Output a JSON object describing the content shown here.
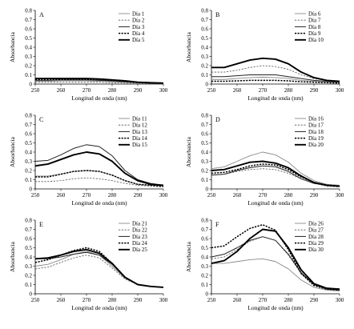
{
  "chart_data": [
    {
      "type": "line",
      "panel": "A",
      "xlabel": "Longitud de onda (nm)",
      "ylabel": "Absorbancia",
      "xlim": [
        250,
        300
      ],
      "ylim": [
        0,
        0.8
      ],
      "xticks": [
        "250",
        "260",
        "270",
        "280",
        "290",
        "300"
      ],
      "yticks": [
        "0",
        "0.1",
        "0.2",
        "0.3",
        "0.4",
        "0.5",
        "0.6",
        "0.7",
        "0.8"
      ],
      "x": [
        250,
        255,
        260,
        265,
        270,
        275,
        280,
        285,
        290,
        295,
        300
      ],
      "series": [
        {
          "name": "Día 1",
          "style": "solid-thin",
          "values": [
            0.03,
            0.03,
            0.035,
            0.035,
            0.035,
            0.03,
            0.025,
            0.02,
            0.015,
            0.01,
            0.01
          ]
        },
        {
          "name": "Día 2",
          "style": "dashed-thin",
          "values": [
            0.02,
            0.02,
            0.02,
            0.02,
            0.02,
            0.02,
            0.015,
            0.01,
            0.01,
            0.005,
            0.005
          ]
        },
        {
          "name": "Día 3",
          "style": "solid-medium",
          "values": [
            0.04,
            0.04,
            0.045,
            0.045,
            0.045,
            0.04,
            0.035,
            0.025,
            0.015,
            0.01,
            0.01
          ]
        },
        {
          "name": "Día 4",
          "style": "dashed-thick",
          "values": [
            0.05,
            0.05,
            0.05,
            0.05,
            0.05,
            0.045,
            0.04,
            0.03,
            0.02,
            0.015,
            0.01
          ]
        },
        {
          "name": "Día 5",
          "style": "solid-thick",
          "values": [
            0.06,
            0.06,
            0.06,
            0.06,
            0.06,
            0.055,
            0.045,
            0.035,
            0.02,
            0.015,
            0.01
          ]
        }
      ]
    },
    {
      "type": "line",
      "panel": "B",
      "xlabel": "Longitud de onda (nm)",
      "ylabel": "Absorbancia",
      "xlim": [
        250,
        300
      ],
      "ylim": [
        0,
        0.8
      ],
      "xticks": [
        "250",
        "260",
        "270",
        "280",
        "290",
        "300"
      ],
      "yticks": [
        "0",
        "0.1",
        "0.2",
        "0.3",
        "0.4",
        "0.5",
        "0.6",
        "0.7",
        "0.8"
      ],
      "x": [
        250,
        255,
        260,
        265,
        270,
        275,
        280,
        285,
        290,
        295,
        300
      ],
      "series": [
        {
          "name": "Día 6",
          "style": "solid-thin",
          "values": [
            0.05,
            0.05,
            0.06,
            0.07,
            0.075,
            0.07,
            0.06,
            0.04,
            0.03,
            0.02,
            0.02
          ]
        },
        {
          "name": "Día 7",
          "style": "dashed-thin",
          "values": [
            0.13,
            0.13,
            0.15,
            0.18,
            0.2,
            0.19,
            0.16,
            0.1,
            0.06,
            0.04,
            0.03
          ]
        },
        {
          "name": "Día 8",
          "style": "solid-medium",
          "values": [
            0.08,
            0.08,
            0.09,
            0.1,
            0.1,
            0.1,
            0.08,
            0.06,
            0.04,
            0.03,
            0.02
          ]
        },
        {
          "name": "Día 9",
          "style": "dashed-thick",
          "values": [
            0.03,
            0.03,
            0.035,
            0.04,
            0.04,
            0.04,
            0.035,
            0.025,
            0.02,
            0.015,
            0.01
          ]
        },
        {
          "name": "Día 10",
          "style": "solid-thick",
          "values": [
            0.18,
            0.18,
            0.22,
            0.26,
            0.28,
            0.27,
            0.22,
            0.13,
            0.07,
            0.04,
            0.03
          ]
        }
      ]
    },
    {
      "type": "line",
      "panel": "C",
      "xlabel": "Longitud de onda (nm)",
      "ylabel": "Absorbancia",
      "xlim": [
        250,
        300
      ],
      "ylim": [
        0,
        0.8
      ],
      "xticks": [
        "250",
        "260",
        "270",
        "280",
        "290",
        "300"
      ],
      "yticks": [
        "0",
        "0.1",
        "0.2",
        "0.3",
        "0.4",
        "0.5",
        "0.6",
        "0.7",
        "0.8"
      ],
      "x": [
        250,
        255,
        260,
        265,
        270,
        275,
        280,
        285,
        290,
        295,
        300
      ],
      "series": [
        {
          "name": "Día 11",
          "style": "solid-thin",
          "values": [
            0.14,
            0.14,
            0.16,
            0.19,
            0.2,
            0.19,
            0.15,
            0.09,
            0.05,
            0.04,
            0.03
          ]
        },
        {
          "name": "Día 12",
          "style": "dashed-thin",
          "values": [
            0.08,
            0.08,
            0.09,
            0.11,
            0.12,
            0.11,
            0.09,
            0.06,
            0.04,
            0.03,
            0.02
          ]
        },
        {
          "name": "Día 13",
          "style": "solid-medium",
          "values": [
            0.3,
            0.31,
            0.37,
            0.44,
            0.48,
            0.46,
            0.36,
            0.2,
            0.1,
            0.06,
            0.04
          ]
        },
        {
          "name": "Día 14",
          "style": "dashed-thick",
          "values": [
            0.13,
            0.13,
            0.16,
            0.19,
            0.2,
            0.19,
            0.15,
            0.09,
            0.05,
            0.04,
            0.03
          ]
        },
        {
          "name": "Día 15",
          "style": "solid-thick",
          "values": [
            0.25,
            0.27,
            0.32,
            0.37,
            0.4,
            0.38,
            0.3,
            0.17,
            0.09,
            0.05,
            0.04
          ]
        }
      ]
    },
    {
      "type": "line",
      "panel": "D",
      "xlabel": "Longitud de onda (nm)",
      "ylabel": "Absorbancia",
      "xlim": [
        250,
        300
      ],
      "ylim": [
        0,
        0.8
      ],
      "xticks": [
        "250",
        "260",
        "270",
        "280",
        "290",
        "300"
      ],
      "yticks": [
        "0",
        "0.1",
        "0.2",
        "0.3",
        "0.4",
        "0.5",
        "0.6",
        "0.7",
        "0.8"
      ],
      "x": [
        250,
        255,
        260,
        265,
        270,
        275,
        280,
        285,
        290,
        295,
        300
      ],
      "series": [
        {
          "name": "Día 16",
          "style": "solid-thin",
          "values": [
            0.22,
            0.24,
            0.3,
            0.36,
            0.4,
            0.37,
            0.29,
            0.17,
            0.09,
            0.05,
            0.04
          ]
        },
        {
          "name": "Día 17",
          "style": "dashed-thin",
          "values": [
            0.15,
            0.16,
            0.19,
            0.21,
            0.22,
            0.21,
            0.17,
            0.11,
            0.06,
            0.03,
            0.02
          ]
        },
        {
          "name": "Día 18",
          "style": "solid-medium",
          "values": [
            0.15,
            0.16,
            0.2,
            0.23,
            0.25,
            0.24,
            0.19,
            0.11,
            0.06,
            0.04,
            0.03
          ]
        },
        {
          "name": "Día 19",
          "style": "dashed-thick",
          "values": [
            0.17,
            0.18,
            0.21,
            0.25,
            0.27,
            0.26,
            0.21,
            0.13,
            0.07,
            0.04,
            0.03
          ]
        },
        {
          "name": "Día 20",
          "style": "solid-thick",
          "values": [
            0.2,
            0.21,
            0.25,
            0.29,
            0.3,
            0.28,
            0.23,
            0.14,
            0.07,
            0.04,
            0.03
          ]
        }
      ]
    },
    {
      "type": "line",
      "panel": "E",
      "xlabel": "Longitud de onda (nm)",
      "ylabel": "Absorbancia",
      "xlim": [
        250,
        300
      ],
      "ylim": [
        0,
        0.8
      ],
      "xticks": [
        "250",
        "260",
        "270",
        "280",
        "290",
        "300"
      ],
      "yticks": [
        "0",
        "0.1",
        "0.2",
        "0.3",
        "0.4",
        "0.5",
        "0.6",
        "0.7",
        "0.8"
      ],
      "x": [
        250,
        255,
        260,
        265,
        270,
        275,
        280,
        285,
        290,
        295,
        300
      ],
      "series": [
        {
          "name": "Día 21",
          "style": "solid-thin",
          "values": [
            0.3,
            0.32,
            0.37,
            0.43,
            0.46,
            0.42,
            0.3,
            0.17,
            0.1,
            0.08,
            0.07
          ]
        },
        {
          "name": "Día 22",
          "style": "dashed-thin",
          "values": [
            0.27,
            0.29,
            0.34,
            0.39,
            0.42,
            0.39,
            0.28,
            0.16,
            0.1,
            0.08,
            0.07
          ]
        },
        {
          "name": "Día 23",
          "style": "solid-medium",
          "values": [
            0.38,
            0.38,
            0.4,
            0.43,
            0.45,
            0.42,
            0.32,
            0.18,
            0.1,
            0.08,
            0.07
          ]
        },
        {
          "name": "Día 24",
          "style": "dashed-thick",
          "values": [
            0.34,
            0.37,
            0.42,
            0.47,
            0.5,
            0.46,
            0.33,
            0.18,
            0.1,
            0.08,
            0.07
          ]
        },
        {
          "name": "Día 25",
          "style": "solid-thick",
          "values": [
            0.38,
            0.39,
            0.42,
            0.46,
            0.48,
            0.44,
            0.33,
            0.18,
            0.1,
            0.08,
            0.07
          ]
        }
      ]
    },
    {
      "type": "line",
      "panel": "F",
      "xlabel": "Longitud de onda (nm)",
      "ylabel": "Absorbancia",
      "xlim": [
        250,
        300
      ],
      "ylim": [
        0,
        0.8
      ],
      "xticks": [
        "250",
        "260",
        "270",
        "280",
        "290",
        "300"
      ],
      "yticks": [
        "0",
        "0.1",
        "0.2",
        "0.3",
        "0.4",
        "0.5",
        "0.6",
        "0.7",
        "0.8"
      ],
      "x": [
        250,
        255,
        260,
        265,
        270,
        275,
        280,
        285,
        290,
        295,
        300
      ],
      "series": [
        {
          "name": "Día 26",
          "style": "solid-thin",
          "values": [
            0.33,
            0.33,
            0.35,
            0.37,
            0.38,
            0.35,
            0.27,
            0.15,
            0.07,
            0.04,
            0.03
          ]
        },
        {
          "name": "Día 27",
          "style": "dashed-thin",
          "values": [
            0.38,
            0.4,
            0.48,
            0.57,
            0.62,
            0.58,
            0.42,
            0.22,
            0.1,
            0.05,
            0.04
          ]
        },
        {
          "name": "Día 28",
          "style": "solid-medium",
          "values": [
            0.4,
            0.43,
            0.5,
            0.58,
            0.62,
            0.58,
            0.43,
            0.23,
            0.1,
            0.05,
            0.04
          ]
        },
        {
          "name": "Día 29",
          "style": "dashed-thick",
          "values": [
            0.5,
            0.52,
            0.62,
            0.71,
            0.75,
            0.69,
            0.48,
            0.22,
            0.09,
            0.05,
            0.04
          ]
        },
        {
          "name": "Día 30",
          "style": "solid-thick",
          "values": [
            0.33,
            0.36,
            0.46,
            0.6,
            0.7,
            0.68,
            0.5,
            0.26,
            0.11,
            0.06,
            0.05
          ]
        }
      ]
    }
  ]
}
